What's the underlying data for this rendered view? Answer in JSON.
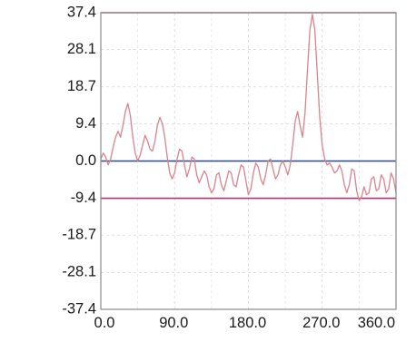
{
  "chart_data": {
    "type": "line",
    "title": "",
    "xlabel": "",
    "ylabel": "",
    "xlim": [
      0,
      360
    ],
    "ylim": [
      -37.4,
      37.4
    ],
    "grid": true,
    "x_ticks": [
      0,
      90,
      180,
      270,
      360
    ],
    "x_tick_labels": [
      "0.0",
      "90.0",
      "180.0",
      "270.0",
      "360.0"
    ],
    "y_ticks": [
      37.4,
      28.1,
      18.7,
      9.4,
      0,
      -9.4,
      -18.7,
      -28.1,
      -37.4
    ],
    "y_tick_labels": [
      "37.4",
      "28.1",
      "18.7",
      "9.4",
      "0.0",
      "-9.4",
      "-18.7",
      "-28.1",
      "-37.4"
    ],
    "reference_lines": [
      {
        "y": 37.4,
        "color": "#c8506e"
      },
      {
        "y": 0,
        "color": "#2a4a8a"
      },
      {
        "y": -9.4,
        "color": "#b0307a"
      }
    ],
    "series": [
      {
        "color": "#d9848c",
        "x": [
          0,
          3,
          6,
          9,
          12,
          15,
          18,
          21,
          24,
          27,
          30,
          33,
          36,
          39,
          42,
          45,
          48,
          51,
          54,
          57,
          60,
          63,
          66,
          69,
          72,
          75,
          78,
          81,
          84,
          87,
          90,
          93,
          96,
          99,
          102,
          105,
          108,
          111,
          114,
          117,
          120,
          123,
          126,
          129,
          132,
          135,
          138,
          141,
          144,
          147,
          150,
          153,
          156,
          159,
          162,
          165,
          168,
          171,
          174,
          177,
          180,
          183,
          186,
          189,
          192,
          195,
          198,
          201,
          204,
          207,
          210,
          213,
          216,
          219,
          222,
          225,
          228,
          231,
          234,
          237,
          240,
          243,
          246,
          249,
          252,
          255,
          258,
          261,
          264,
          267,
          270,
          273,
          276,
          279,
          282,
          285,
          288,
          291,
          294,
          297,
          300,
          303,
          306,
          309,
          312,
          315,
          318,
          321,
          324,
          327,
          330,
          333,
          336,
          339,
          342,
          345,
          348,
          351,
          354,
          357,
          360
        ],
        "y": [
          0.5,
          2.0,
          1.0,
          -1.0,
          0.5,
          3.5,
          6.0,
          7.5,
          6.0,
          9.0,
          12.5,
          14.5,
          11.5,
          6.0,
          2.0,
          0.0,
          1.5,
          4.0,
          6.5,
          5.0,
          3.0,
          2.5,
          5.0,
          9.0,
          11.0,
          9.5,
          6.0,
          1.0,
          -3.0,
          -4.5,
          -3.0,
          0.5,
          3.0,
          2.5,
          -1.0,
          -4.0,
          -2.0,
          1.0,
          0.5,
          -3.5,
          -5.5,
          -4.0,
          -2.5,
          -3.5,
          -6.5,
          -8.0,
          -7.0,
          -3.5,
          -3.0,
          -6.0,
          -7.5,
          -5.0,
          -2.5,
          -3.0,
          -6.0,
          -6.5,
          -3.5,
          -1.0,
          -1.5,
          -5.0,
          -8.5,
          -7.0,
          -3.0,
          -0.5,
          -1.5,
          -4.5,
          -6.0,
          -3.5,
          0.0,
          0.5,
          -2.0,
          -4.5,
          -3.5,
          -1.0,
          0.0,
          -1.5,
          -3.5,
          -1.0,
          4.0,
          10.0,
          12.5,
          9.0,
          6.0,
          12.0,
          23.0,
          33.0,
          37.0,
          33.0,
          22.0,
          11.0,
          4.0,
          0.5,
          -1.0,
          -0.5,
          -1.5,
          -3.0,
          -2.5,
          -1.0,
          -2.5,
          -6.0,
          -8.0,
          -6.0,
          -2.0,
          -2.5,
          -7.5,
          -10.0,
          -9.0,
          -6.5,
          -8.5,
          -8.0,
          -4.5,
          -4.0,
          -7.5,
          -7.0,
          -3.5,
          -4.5,
          -8.0,
          -7.0,
          -3.0,
          -4.5,
          -8.0
        ]
      }
    ]
  }
}
